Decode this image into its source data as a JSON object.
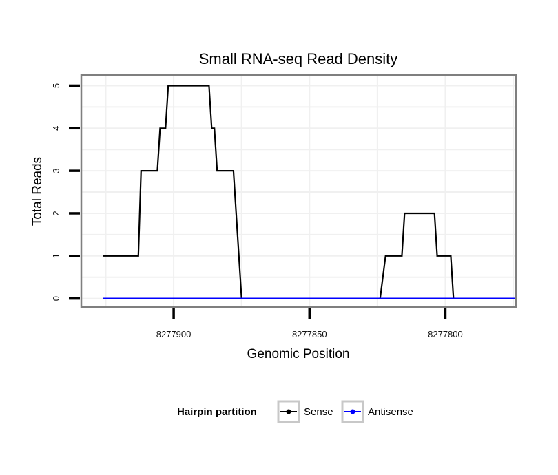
{
  "chart_data": {
    "type": "line",
    "title": "Small RNA-seq Read Density",
    "xlabel": "Genomic Position",
    "ylabel": "Total Reads",
    "x_reversed": true,
    "xlim": [
      8277934,
      8277774
    ],
    "ylim": [
      -0.2,
      5.25
    ],
    "xticks": [
      8277900,
      8277850,
      8277800
    ],
    "xtick_labels": [
      "8277900",
      "8277850",
      "8277800"
    ],
    "yticks": [
      0,
      1,
      2,
      3,
      4,
      5
    ],
    "ytick_labels": [
      "0",
      "1",
      "2",
      "3",
      "4",
      "5"
    ],
    "grid": true,
    "legend_title": "Hairpin partition",
    "legend_position": "bottom",
    "series": [
      {
        "name": "Sense",
        "color": "#000000",
        "x": [
          8277926,
          8277913,
          8277912,
          8277906,
          8277905,
          8277903,
          8277902,
          8277900,
          8277899,
          8277887,
          8277886,
          8277885,
          8277884,
          8277878,
          8277875,
          8277824,
          8277822,
          8277816,
          8277815,
          8277804,
          8277803,
          8277798,
          8277797,
          8277774
        ],
        "y": [
          1,
          1,
          3,
          3,
          4,
          4,
          5,
          5,
          5,
          5,
          4,
          4,
          3,
          3,
          0,
          0,
          1,
          1,
          2,
          2,
          1,
          1,
          0,
          0
        ]
      },
      {
        "name": "Antisense",
        "color": "#0000ff",
        "x": [
          8277926,
          8277774
        ],
        "y": [
          0,
          0
        ]
      }
    ]
  }
}
